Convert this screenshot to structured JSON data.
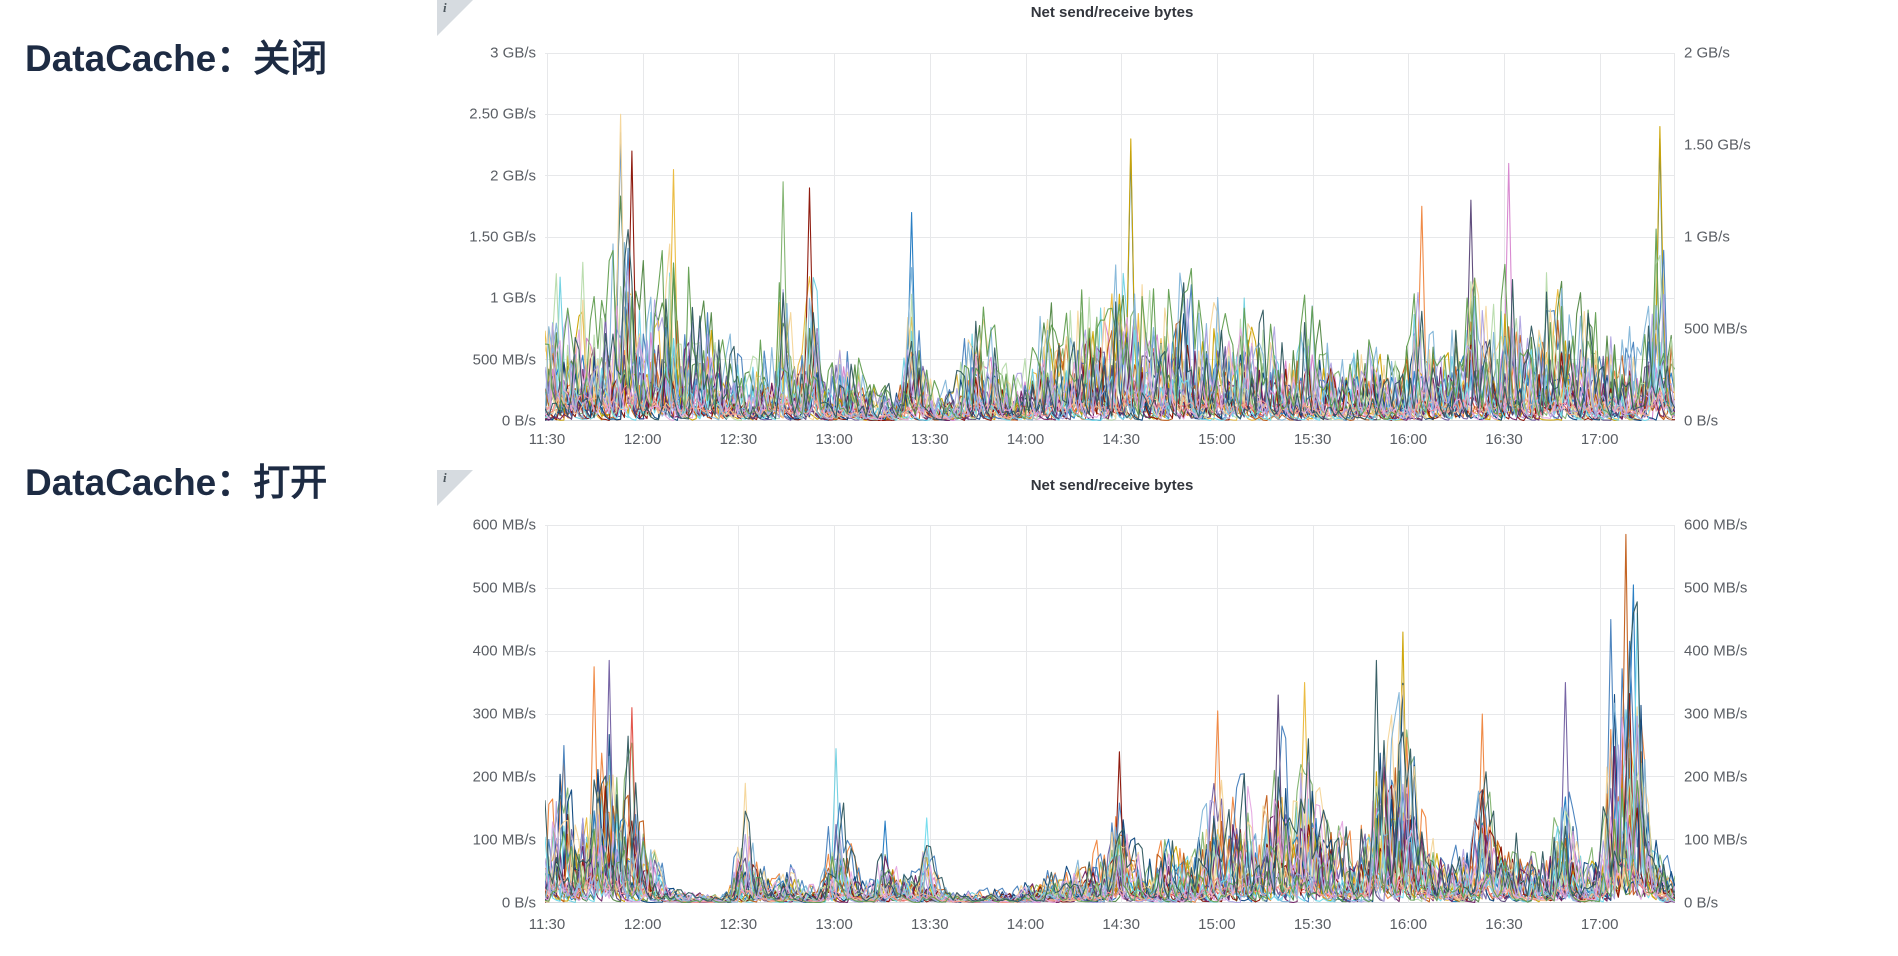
{
  "page": {
    "background": "#ffffff"
  },
  "sections": [
    {
      "label": "DataCache：关闭"
    },
    {
      "label": "DataCache：打开"
    }
  ],
  "icons": {
    "panel_info": "i"
  },
  "colors": {
    "section_label": "#1d2b43",
    "panel_title": "#33363d",
    "axis_text": "#5a5e64",
    "gridline": "#e7e8ea",
    "axis_line": "#d7d9dc",
    "info_corner": "#d6dbe0"
  },
  "chart_data": [
    {
      "type": "line",
      "title": "Net send/receive bytes",
      "legend": "none",
      "grid": true,
      "time_start": "11:28",
      "time_end": "17:25",
      "x_ticks": [
        "11:30",
        "12:00",
        "12:30",
        "13:00",
        "13:30",
        "14:00",
        "14:30",
        "15:00",
        "15:30",
        "16:00",
        "16:30",
        "17:00"
      ],
      "y_left": {
        "unit": "GB/s",
        "max": 3,
        "ticks": [
          "3 GB/s",
          "2.50 GB/s",
          "2 GB/s",
          "1.50 GB/s",
          "1 GB/s",
          "500 MB/s",
          "0 B/s"
        ]
      },
      "y_right": {
        "unit": "GB/s",
        "max": 2,
        "ticks": [
          "2 GB/s",
          "1.50 GB/s",
          "1 GB/s",
          "500 MB/s",
          "0 B/s"
        ]
      },
      "series_count": 26,
      "seed": 1337,
      "low_band_series": [
        4,
        19,
        20
      ],
      "palette": [
        "#7EB26D",
        "#EAB839",
        "#6ED0E0",
        "#EF843C",
        "#E24D42",
        "#1F78C1",
        "#D683CE",
        "#705DA0",
        "#508642",
        "#CCA300",
        "#447EBC",
        "#C15C17",
        "#890F02",
        "#0A437C",
        "#6D1F62",
        "#584477",
        "#B7DBAB",
        "#F4D598",
        "#70DBED",
        "#F9BA8F",
        "#F29191",
        "#82B5D8",
        "#E5A8E2",
        "#AEA2E0",
        "#629E51",
        "#2F575E"
      ],
      "envelope": [
        [
          "11:28",
          1.05
        ],
        [
          "11:31",
          1.45
        ],
        [
          "11:33",
          1.75
        ],
        [
          "11:36",
          0.95
        ],
        [
          "11:40",
          1.8
        ],
        [
          "11:43",
          1.25
        ],
        [
          "11:46",
          1.55
        ],
        [
          "11:49",
          1.8
        ],
        [
          "11:52",
          2.5
        ],
        [
          "11:55",
          2.2
        ],
        [
          "11:58",
          1.7
        ],
        [
          "12:01",
          1.9
        ],
        [
          "12:04",
          1.45
        ],
        [
          "12:08",
          2.05
        ],
        [
          "12:11",
          1.55
        ],
        [
          "12:14",
          1.85
        ],
        [
          "12:17",
          1.45
        ],
        [
          "12:20",
          1.25
        ],
        [
          "12:24",
          0.9
        ],
        [
          "12:28",
          0.85
        ],
        [
          "12:32",
          0.55
        ],
        [
          "12:36",
          0.9
        ],
        [
          "12:40",
          0.75
        ],
        [
          "12:43",
          1.95
        ],
        [
          "12:47",
          0.8
        ],
        [
          "12:52",
          1.9
        ],
        [
          "12:56",
          0.55
        ],
        [
          "13:00",
          0.95
        ],
        [
          "13:05",
          1.05
        ],
        [
          "13:10",
          0.5
        ],
        [
          "13:15",
          0.35
        ],
        [
          "13:20",
          0.55
        ],
        [
          "13:24",
          1.7
        ],
        [
          "13:28",
          0.7
        ],
        [
          "13:32",
          0.3
        ],
        [
          "13:36",
          0.4
        ],
        [
          "13:40",
          0.9
        ],
        [
          "13:44",
          1.3
        ],
        [
          "13:48",
          1.2
        ],
        [
          "13:52",
          0.65
        ],
        [
          "13:56",
          0.5
        ],
        [
          "14:00",
          0.7
        ],
        [
          "14:04",
          1.1
        ],
        [
          "14:08",
          1.25
        ],
        [
          "14:12",
          1.05
        ],
        [
          "14:16",
          1.5
        ],
        [
          "14:20",
          1.4
        ],
        [
          "14:24",
          1.8
        ],
        [
          "14:28",
          1.55
        ],
        [
          "14:33",
          2.32
        ],
        [
          "14:37",
          1.7
        ],
        [
          "14:41",
          1.4
        ],
        [
          "14:45",
          1.65
        ],
        [
          "14:49",
          1.9
        ],
        [
          "14:53",
          1.5
        ],
        [
          "14:57",
          1.2
        ],
        [
          "15:01",
          1.55
        ],
        [
          "15:05",
          1.3
        ],
        [
          "15:09",
          1.65
        ],
        [
          "15:13",
          1.2
        ],
        [
          "15:17",
          1.05
        ],
        [
          "15:21",
          1.15
        ],
        [
          "15:25",
          0.95
        ],
        [
          "15:29",
          1.3
        ],
        [
          "15:33",
          1.1
        ],
        [
          "15:37",
          0.85
        ],
        [
          "15:41",
          0.75
        ],
        [
          "15:45",
          0.95
        ],
        [
          "15:49",
          1.1
        ],
        [
          "15:53",
          0.85
        ],
        [
          "15:57",
          0.8
        ],
        [
          "16:01",
          1.0
        ],
        [
          "16:05",
          1.75
        ],
        [
          "16:09",
          1.2
        ],
        [
          "16:13",
          0.9
        ],
        [
          "16:17",
          1.3
        ],
        [
          "16:21",
          1.8
        ],
        [
          "16:25",
          1.45
        ],
        [
          "16:29",
          1.1
        ],
        [
          "16:32",
          2.1
        ],
        [
          "16:36",
          1.4
        ],
        [
          "16:40",
          1.2
        ],
        [
          "16:44",
          1.75
        ],
        [
          "16:48",
          1.5
        ],
        [
          "16:52",
          1.1
        ],
        [
          "16:56",
          1.35
        ],
        [
          "17:00",
          1.15
        ],
        [
          "17:04",
          1.6
        ],
        [
          "17:08",
          1.0
        ],
        [
          "17:12",
          0.85
        ],
        [
          "17:16",
          1.15
        ],
        [
          "17:20",
          2.4
        ],
        [
          "17:23",
          1.7
        ],
        [
          "17:25",
          0.8
        ]
      ],
      "signature_spikes": [
        [
          "11:52",
          2.5,
          "#F4D598"
        ],
        [
          "11:52",
          2.35,
          "#447EBC"
        ],
        [
          "11:55",
          2.2,
          "#890F02"
        ],
        [
          "12:08",
          2.05,
          "#EAB839"
        ],
        [
          "12:43",
          1.95,
          "#7EB26D"
        ],
        [
          "12:52",
          1.9,
          "#890F02"
        ],
        [
          "13:24",
          1.7,
          "#1F78C1"
        ],
        [
          "14:33",
          2.3,
          "#CCA300"
        ],
        [
          "14:33",
          2.2,
          "#1F78C1"
        ],
        [
          "16:05",
          1.75,
          "#EF843C"
        ],
        [
          "16:21",
          1.8,
          "#584477"
        ],
        [
          "16:32",
          2.1,
          "#D683CE"
        ],
        [
          "17:20",
          2.4,
          "#CCA300"
        ],
        [
          "17:20",
          2.3,
          "#1F78C1"
        ]
      ]
    },
    {
      "type": "line",
      "title": "Net send/receive bytes",
      "legend": "none",
      "grid": true,
      "time_start": "11:28",
      "time_end": "17:25",
      "x_ticks": [
        "11:30",
        "12:00",
        "12:30",
        "13:00",
        "13:30",
        "14:00",
        "14:30",
        "15:00",
        "15:30",
        "16:00",
        "16:30",
        "17:00"
      ],
      "y_left": {
        "unit": "MB/s",
        "max": 600,
        "ticks": [
          "600 MB/s",
          "500 MB/s",
          "400 MB/s",
          "300 MB/s",
          "200 MB/s",
          "100 MB/s",
          "0 B/s"
        ]
      },
      "y_right": {
        "unit": "MB/s",
        "max": 600,
        "ticks": [
          "600 MB/s",
          "500 MB/s",
          "400 MB/s",
          "300 MB/s",
          "200 MB/s",
          "100 MB/s",
          "0 B/s"
        ]
      },
      "series_count": 26,
      "seed": 777,
      "low_band_series": [
        4,
        19,
        20
      ],
      "palette": [
        "#7EB26D",
        "#EAB839",
        "#6ED0E0",
        "#EF843C",
        "#E24D42",
        "#1F78C1",
        "#D683CE",
        "#705DA0",
        "#508642",
        "#CCA300",
        "#447EBC",
        "#C15C17",
        "#890F02",
        "#0A437C",
        "#6D1F62",
        "#584477",
        "#B7DBAB",
        "#F4D598",
        "#70DBED",
        "#F9BA8F",
        "#F29191",
        "#82B5D8",
        "#E5A8E2",
        "#AEA2E0",
        "#629E51",
        "#2F575E"
      ],
      "envelope": [
        [
          "11:28",
          220
        ],
        [
          "11:31",
          255
        ],
        [
          "11:34",
          305
        ],
        [
          "11:37",
          180
        ],
        [
          "11:40",
          200
        ],
        [
          "11:44",
          375
        ],
        [
          "11:48",
          385
        ],
        [
          "11:52",
          280
        ],
        [
          "11:55",
          310
        ],
        [
          "11:58",
          230
        ],
        [
          "12:02",
          150
        ],
        [
          "12:06",
          45
        ],
        [
          "12:10",
          25
        ],
        [
          "12:15",
          20
        ],
        [
          "12:20",
          18
        ],
        [
          "12:25",
          22
        ],
        [
          "12:31",
          190
        ],
        [
          "12:35",
          90
        ],
        [
          "12:40",
          45
        ],
        [
          "12:45",
          85
        ],
        [
          "12:50",
          40
        ],
        [
          "12:55",
          50
        ],
        [
          "13:00",
          245
        ],
        [
          "13:04",
          120
        ],
        [
          "13:08",
          45
        ],
        [
          "13:12",
          60
        ],
        [
          "13:15",
          130
        ],
        [
          "13:20",
          60
        ],
        [
          "13:24",
          70
        ],
        [
          "13:28",
          135
        ],
        [
          "13:32",
          60
        ],
        [
          "13:36",
          25
        ],
        [
          "13:40",
          20
        ],
        [
          "13:45",
          25
        ],
        [
          "13:50",
          30
        ],
        [
          "13:55",
          22
        ],
        [
          "14:00",
          45
        ],
        [
          "14:05",
          60
        ],
        [
          "14:10",
          75
        ],
        [
          "14:15",
          70
        ],
        [
          "14:20",
          110
        ],
        [
          "14:25",
          120
        ],
        [
          "14:30",
          240
        ],
        [
          "14:34",
          110
        ],
        [
          "14:38",
          90
        ],
        [
          "14:42",
          140
        ],
        [
          "14:46",
          160
        ],
        [
          "14:50",
          130
        ],
        [
          "14:55",
          150
        ],
        [
          "15:00",
          305
        ],
        [
          "15:04",
          200
        ],
        [
          "15:08",
          280
        ],
        [
          "15:12",
          210
        ],
        [
          "15:16",
          240
        ],
        [
          "15:20",
          330
        ],
        [
          "15:24",
          260
        ],
        [
          "15:28",
          350
        ],
        [
          "15:32",
          240
        ],
        [
          "15:36",
          175
        ],
        [
          "15:40",
          165
        ],
        [
          "15:44",
          130
        ],
        [
          "15:48",
          240
        ],
        [
          "15:51",
          385
        ],
        [
          "15:55",
          345
        ],
        [
          "15:59",
          430
        ],
        [
          "16:03",
          290
        ],
        [
          "16:07",
          160
        ],
        [
          "16:11",
          115
        ],
        [
          "16:15",
          95
        ],
        [
          "16:19",
          130
        ],
        [
          "16:24",
          300
        ],
        [
          "16:28",
          170
        ],
        [
          "16:32",
          180
        ],
        [
          "16:36",
          120
        ],
        [
          "16:40",
          110
        ],
        [
          "16:45",
          95
        ],
        [
          "16:50",
          350
        ],
        [
          "16:54",
          120
        ],
        [
          "16:58",
          100
        ],
        [
          "17:02",
          190
        ],
        [
          "17:05",
          450
        ],
        [
          "17:08",
          520
        ],
        [
          "17:10",
          585
        ],
        [
          "17:12",
          505
        ],
        [
          "17:14",
          460
        ],
        [
          "17:16",
          300
        ],
        [
          "17:18",
          150
        ],
        [
          "17:20",
          120
        ],
        [
          "17:22",
          90
        ],
        [
          "17:25",
          60
        ]
      ],
      "signature_spikes": [
        [
          "11:44",
          375,
          "#EF843C"
        ],
        [
          "11:48",
          385,
          "#705DA0"
        ],
        [
          "11:55",
          310,
          "#E24D42"
        ],
        [
          "12:31",
          190,
          "#F4D598"
        ],
        [
          "13:00",
          245,
          "#6ED0E0"
        ],
        [
          "13:15",
          130,
          "#1F78C1"
        ],
        [
          "13:28",
          135,
          "#70DBED"
        ],
        [
          "14:30",
          240,
          "#890F02"
        ],
        [
          "15:00",
          305,
          "#EF843C"
        ],
        [
          "15:20",
          330,
          "#584477"
        ],
        [
          "15:28",
          350,
          "#EAB839"
        ],
        [
          "15:51",
          385,
          "#2F575E"
        ],
        [
          "15:59",
          430,
          "#CCA300"
        ],
        [
          "16:24",
          300,
          "#EF843C"
        ],
        [
          "16:50",
          350,
          "#705DA0"
        ],
        [
          "17:05",
          450,
          "#447EBC"
        ],
        [
          "17:10",
          585,
          "#C15C17"
        ],
        [
          "17:12",
          505,
          "#1F78C1"
        ],
        [
          "17:13",
          460,
          "#70DBED"
        ]
      ]
    }
  ]
}
